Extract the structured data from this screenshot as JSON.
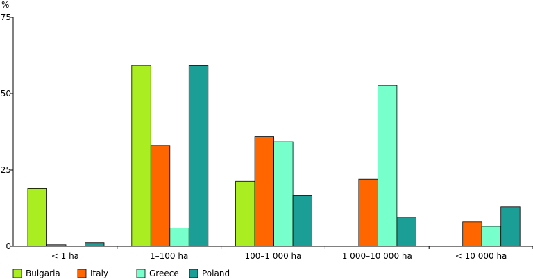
{
  "chart_data": {
    "type": "bar",
    "ylabel": "%",
    "ylim": [
      0,
      75
    ],
    "yticks": [
      "0",
      "25",
      "50",
      "75"
    ],
    "categories": [
      "< 1 ha",
      "1–100 ha",
      "100–1 000 ha",
      "1 000–10 000 ha",
      "< 10 000 ha"
    ],
    "series": [
      {
        "name": "Bulgaria",
        "color": "#aaee22",
        "values": [
          19,
          59.3,
          21.3,
          0,
          0
        ]
      },
      {
        "name": "Italy",
        "color": "#ff6600",
        "values": [
          0.5,
          33,
          36,
          22,
          8
        ]
      },
      {
        "name": "Greece",
        "color": "#77ffcc",
        "values": [
          0,
          6,
          34.3,
          52.7,
          6.6
        ]
      },
      {
        "name": "Poland",
        "color": "#1a9e96",
        "values": [
          1.2,
          59.2,
          16.7,
          9.6,
          13
        ]
      }
    ],
    "grid": false,
    "legend_position": "bottom-left"
  }
}
